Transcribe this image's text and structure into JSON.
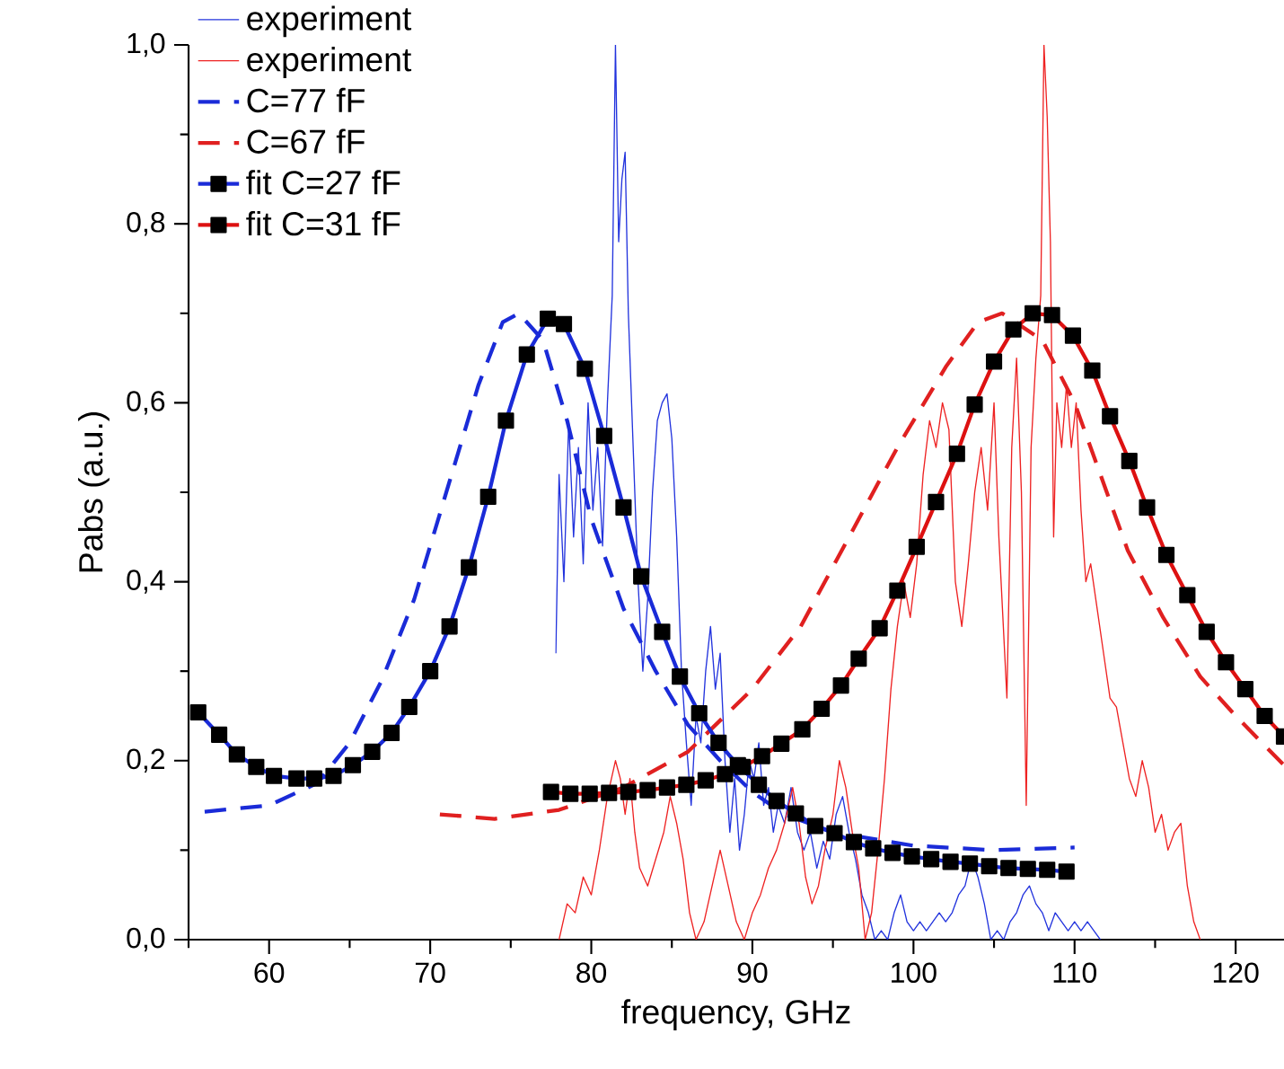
{
  "chart_data": {
    "type": "line",
    "xlabel": "frequency, GHz",
    "ylabel": "Pabs (a.u.)",
    "xlim": [
      55,
      123
    ],
    "ylim": [
      0,
      1
    ],
    "xticks": [
      {
        "value": 55,
        "label": null
      },
      60,
      {
        "value": 65,
        "label": null
      },
      70,
      {
        "value": 75,
        "label": null
      },
      80,
      {
        "value": 85,
        "label": null
      },
      90,
      {
        "value": 95,
        "label": null
      },
      100,
      {
        "value": 105,
        "label": null
      },
      110,
      {
        "value": 115,
        "label": null
      },
      120
    ],
    "yticks": [
      {
        "value": 0,
        "label": "0,0"
      },
      {
        "value": 0.1,
        "label": null
      },
      {
        "value": 0.2,
        "label": "0,2"
      },
      {
        "value": 0.3,
        "label": null
      },
      {
        "value": 0.4,
        "label": "0,4"
      },
      {
        "value": 0.5,
        "label": null
      },
      {
        "value": 0.6,
        "label": "0,6"
      },
      {
        "value": 0.7,
        "label": null
      },
      {
        "value": 0.8,
        "label": "0,8"
      },
      {
        "value": 0.9,
        "label": null
      },
      {
        "value": 1.0,
        "label": "1,0"
      }
    ],
    "legend": "top left",
    "series": [
      {
        "name": "experiment",
        "color": "#2233dd",
        "line_style": "solid",
        "marker": "none",
        "x": [
          77.8,
          78.0,
          78.3,
          78.6,
          78.9,
          79.2,
          79.5,
          79.8,
          80.1,
          80.4,
          80.7,
          81.0,
          81.3,
          81.5,
          81.7,
          81.9,
          82.1,
          82.3,
          82.6,
          82.9,
          83.2,
          83.5,
          83.8,
          84.1,
          84.4,
          84.7,
          85.0,
          85.3,
          85.6,
          85.9,
          86.2,
          86.5,
          86.8,
          87.1,
          87.4,
          87.7,
          88.0,
          88.3,
          88.6,
          88.9,
          89.2,
          89.5,
          89.8,
          90.1,
          90.4,
          90.7,
          91.0,
          91.3,
          91.6,
          92.0,
          92.4,
          92.8,
          93.2,
          93.6,
          94.0,
          94.4,
          94.8,
          95.2,
          95.6,
          96.0,
          96.4,
          96.8,
          97.2,
          97.6,
          98.0,
          98.4,
          98.8,
          99.2,
          99.6,
          100.0,
          100.4,
          100.8,
          101.2,
          101.6,
          102.0,
          102.4,
          102.8,
          103.2,
          103.6,
          104.0,
          104.4,
          104.8,
          105.2,
          105.6,
          106.0,
          106.4,
          106.8,
          107.2,
          107.6,
          108.0,
          108.4,
          108.8,
          109.2,
          109.6,
          110.0,
          110.4,
          110.8,
          111.2,
          111.6
        ],
        "values": [
          0.32,
          0.52,
          0.4,
          0.58,
          0.45,
          0.55,
          0.42,
          0.6,
          0.48,
          0.55,
          0.44,
          0.6,
          0.72,
          1.0,
          0.78,
          0.85,
          0.88,
          0.7,
          0.55,
          0.4,
          0.3,
          0.38,
          0.5,
          0.58,
          0.6,
          0.61,
          0.56,
          0.45,
          0.3,
          0.22,
          0.15,
          0.25,
          0.22,
          0.3,
          0.35,
          0.28,
          0.32,
          0.2,
          0.12,
          0.18,
          0.1,
          0.14,
          0.2,
          0.18,
          0.22,
          0.15,
          0.17,
          0.12,
          0.15,
          0.13,
          0.17,
          0.12,
          0.1,
          0.12,
          0.08,
          0.11,
          0.09,
          0.14,
          0.16,
          0.12,
          0.09,
          0.05,
          0.03,
          0.0,
          0.01,
          0.0,
          0.03,
          0.05,
          0.02,
          0.01,
          0.02,
          0.01,
          0.02,
          0.03,
          0.02,
          0.03,
          0.05,
          0.06,
          0.09,
          0.07,
          0.04,
          0.0,
          0.01,
          0.0,
          0.02,
          0.03,
          0.05,
          0.06,
          0.04,
          0.03,
          0.01,
          0.03,
          0.02,
          0.01,
          0.02,
          0.01,
          0.02,
          0.01,
          0.0
        ]
      },
      {
        "name": "experiment",
        "color": "#ee2222",
        "line_style": "solid",
        "marker": "none",
        "x": [
          78.0,
          78.5,
          79.0,
          79.5,
          80.0,
          80.5,
          81.0,
          81.5,
          81.8,
          82.1,
          82.4,
          82.7,
          83.0,
          83.5,
          84.0,
          84.5,
          84.9,
          85.3,
          85.7,
          86.1,
          86.5,
          87.0,
          87.5,
          88.0,
          88.5,
          89.0,
          89.5,
          90.0,
          90.5,
          91.0,
          91.5,
          92.0,
          92.5,
          92.9,
          93.3,
          93.7,
          94.1,
          94.5,
          95.0,
          95.4,
          95.8,
          96.2,
          96.6,
          97.0,
          97.4,
          97.8,
          98.2,
          98.6,
          99.0,
          99.4,
          99.8,
          100.2,
          100.6,
          101.0,
          101.4,
          101.8,
          102.2,
          102.6,
          103.0,
          103.4,
          103.8,
          104.2,
          104.6,
          105.0,
          105.3,
          105.8,
          106.1,
          106.4,
          106.7,
          107.0,
          107.3,
          107.6,
          107.9,
          108.1,
          108.3,
          108.5,
          108.7,
          108.9,
          109.2,
          109.5,
          109.8,
          110.1,
          110.4,
          110.7,
          111.0,
          111.4,
          111.8,
          112.2,
          112.6,
          113.0,
          113.4,
          113.8,
          114.2,
          114.6,
          115.0,
          115.4,
          115.8,
          116.2,
          116.6,
          117.0,
          117.4,
          117.8
        ],
        "values": [
          0.0,
          0.04,
          0.03,
          0.07,
          0.05,
          0.1,
          0.16,
          0.2,
          0.18,
          0.14,
          0.18,
          0.12,
          0.08,
          0.06,
          0.09,
          0.12,
          0.16,
          0.13,
          0.09,
          0.03,
          0.0,
          0.02,
          0.06,
          0.1,
          0.06,
          0.02,
          0.0,
          0.03,
          0.05,
          0.08,
          0.1,
          0.13,
          0.17,
          0.13,
          0.07,
          0.04,
          0.06,
          0.1,
          0.14,
          0.2,
          0.17,
          0.12,
          0.08,
          0.0,
          0.03,
          0.1,
          0.18,
          0.28,
          0.35,
          0.4,
          0.36,
          0.42,
          0.52,
          0.58,
          0.55,
          0.6,
          0.57,
          0.4,
          0.35,
          0.42,
          0.5,
          0.55,
          0.48,
          0.6,
          0.45,
          0.27,
          0.55,
          0.65,
          0.5,
          0.15,
          0.55,
          0.65,
          0.72,
          1.0,
          0.92,
          0.78,
          0.45,
          0.6,
          0.55,
          0.62,
          0.55,
          0.6,
          0.48,
          0.4,
          0.42,
          0.37,
          0.32,
          0.27,
          0.26,
          0.22,
          0.18,
          0.16,
          0.2,
          0.17,
          0.12,
          0.14,
          0.1,
          0.12,
          0.13,
          0.06,
          0.02,
          0.0
        ]
      },
      {
        "name": "C=77 fF",
        "color": "#1a2bd8",
        "line_style": "dashed",
        "marker": "none",
        "x": [
          56,
          60,
          63,
          65,
          67,
          69,
          71,
          73,
          74.5,
          75.5,
          77,
          78.5,
          80,
          82,
          84,
          86,
          88,
          90,
          92,
          95,
          100,
          105,
          110
        ],
        "values": [
          0.143,
          0.15,
          0.175,
          0.22,
          0.29,
          0.38,
          0.5,
          0.62,
          0.69,
          0.7,
          0.67,
          0.58,
          0.47,
          0.37,
          0.3,
          0.24,
          0.2,
          0.165,
          0.14,
          0.12,
          0.105,
          0.1,
          0.103
        ]
      },
      {
        "name": "C=67 fF",
        "color": "#e02020",
        "line_style": "dashed",
        "marker": "none",
        "x": [
          70.6,
          74,
          78,
          82,
          86,
          90,
          93,
          96,
          99,
          102,
          104,
          105.5,
          108,
          110,
          112,
          113.3,
          115.5,
          117.8,
          120,
          123
        ],
        "values": [
          0.14,
          0.135,
          0.145,
          0.17,
          0.21,
          0.28,
          0.35,
          0.45,
          0.55,
          0.64,
          0.69,
          0.7,
          0.67,
          0.6,
          0.5,
          0.435,
          0.36,
          0.294,
          0.25,
          0.195
        ]
      },
      {
        "name": "fit C=27 fF",
        "color": "#1a2bd8",
        "line_style": "solid",
        "marker": "square",
        "x": [
          55.6,
          56.9,
          58.0,
          59.2,
          60.3,
          61.7,
          62.8,
          64.0,
          65.2,
          66.4,
          67.6,
          68.7,
          70.0,
          71.2,
          72.4,
          73.6,
          74.7,
          76.0,
          77.3,
          78.3,
          79.6,
          80.8,
          82.0,
          83.1,
          84.4,
          85.5,
          86.7,
          87.9,
          89.1,
          90.4,
          91.5,
          92.7,
          93.9,
          95.1,
          96.3,
          97.5,
          98.7,
          99.9,
          101.1,
          102.3,
          103.5,
          104.7,
          105.9,
          107.1,
          108.3,
          109.5
        ],
        "values": [
          0.254,
          0.229,
          0.207,
          0.193,
          0.183,
          0.18,
          0.18,
          0.183,
          0.195,
          0.21,
          0.231,
          0.26,
          0.3,
          0.35,
          0.416,
          0.495,
          0.58,
          0.654,
          0.694,
          0.688,
          0.638,
          0.563,
          0.483,
          0.406,
          0.344,
          0.294,
          0.253,
          0.22,
          0.195,
          0.173,
          0.155,
          0.141,
          0.127,
          0.119,
          0.109,
          0.102,
          0.097,
          0.093,
          0.09,
          0.087,
          0.085,
          0.082,
          0.08,
          0.079,
          0.078,
          0.076
        ]
      },
      {
        "name": "fit C=31 fF",
        "color": "#dd1111",
        "line_style": "solid",
        "marker": "square",
        "x": [
          77.5,
          78.7,
          79.9,
          81.1,
          82.3,
          83.5,
          84.7,
          85.9,
          87.1,
          88.3,
          89.4,
          90.6,
          91.8,
          93.1,
          94.3,
          95.5,
          96.6,
          97.9,
          99.0,
          100.2,
          101.4,
          102.7,
          103.8,
          105.0,
          106.2,
          107.4,
          108.6,
          109.9,
          111.1,
          112.2,
          113.4,
          114.5,
          115.7,
          117.0,
          118.2,
          119.4,
          120.6,
          121.8,
          123.0
        ],
        "values": [
          0.165,
          0.163,
          0.163,
          0.164,
          0.165,
          0.167,
          0.17,
          0.173,
          0.178,
          0.185,
          0.193,
          0.205,
          0.219,
          0.235,
          0.258,
          0.284,
          0.314,
          0.348,
          0.39,
          0.439,
          0.489,
          0.543,
          0.598,
          0.646,
          0.682,
          0.7,
          0.698,
          0.675,
          0.636,
          0.585,
          0.535,
          0.483,
          0.43,
          0.385,
          0.344,
          0.31,
          0.28,
          0.25,
          0.227
        ]
      }
    ]
  }
}
